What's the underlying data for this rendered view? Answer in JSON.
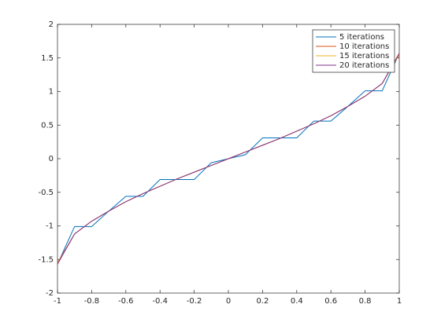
{
  "chart_data": {
    "type": "line",
    "x": [
      -1,
      -0.9,
      -0.8,
      -0.7,
      -0.6,
      -0.5,
      -0.4,
      -0.3,
      -0.2,
      -0.1,
      0,
      0.1,
      0.2,
      0.3,
      0.4,
      0.5,
      0.6,
      0.7,
      0.8,
      0.9,
      1
    ],
    "series": [
      {
        "name": "5 iterations",
        "color": "#0072bd",
        "values": [
          -1.57,
          -1.01,
          -1.01,
          -0.78,
          -0.56,
          -0.56,
          -0.31,
          -0.31,
          -0.31,
          -0.06,
          0,
          0.06,
          0.31,
          0.31,
          0.31,
          0.56,
          0.56,
          0.78,
          1.01,
          1.01,
          1.57
        ]
      },
      {
        "name": "10 iterations",
        "color": "#d95319",
        "values": [
          -1.55,
          -1.12,
          -0.93,
          -0.78,
          -0.64,
          -0.52,
          -0.41,
          -0.3,
          -0.2,
          -0.1,
          0,
          0.1,
          0.2,
          0.3,
          0.41,
          0.52,
          0.64,
          0.78,
          0.93,
          1.12,
          1.55
        ]
      },
      {
        "name": "15 iterations",
        "color": "#edb120",
        "values": [
          -1.56,
          -1.12,
          -0.93,
          -0.78,
          -0.64,
          -0.52,
          -0.41,
          -0.3,
          -0.2,
          -0.1,
          0,
          0.1,
          0.2,
          0.3,
          0.41,
          0.52,
          0.64,
          0.78,
          0.93,
          1.12,
          1.56
        ]
      },
      {
        "name": "20 iterations",
        "color": "#7e2f8e",
        "values": [
          -1.57,
          -1.12,
          -0.93,
          -0.78,
          -0.64,
          -0.52,
          -0.41,
          -0.3,
          -0.2,
          -0.1,
          0,
          0.1,
          0.2,
          0.3,
          0.41,
          0.52,
          0.64,
          0.78,
          0.93,
          1.12,
          1.57
        ]
      }
    ],
    "xlim": [
      -1,
      1
    ],
    "ylim": [
      -2,
      2
    ],
    "xticks": [
      -1,
      -0.8,
      -0.6,
      -0.4,
      -0.2,
      0,
      0.2,
      0.4,
      0.6,
      0.8,
      1
    ],
    "yticks": [
      -2,
      -1.5,
      -1,
      -0.5,
      0,
      0.5,
      1,
      1.5,
      2
    ],
    "grid": false,
    "legend": "top-right"
  }
}
